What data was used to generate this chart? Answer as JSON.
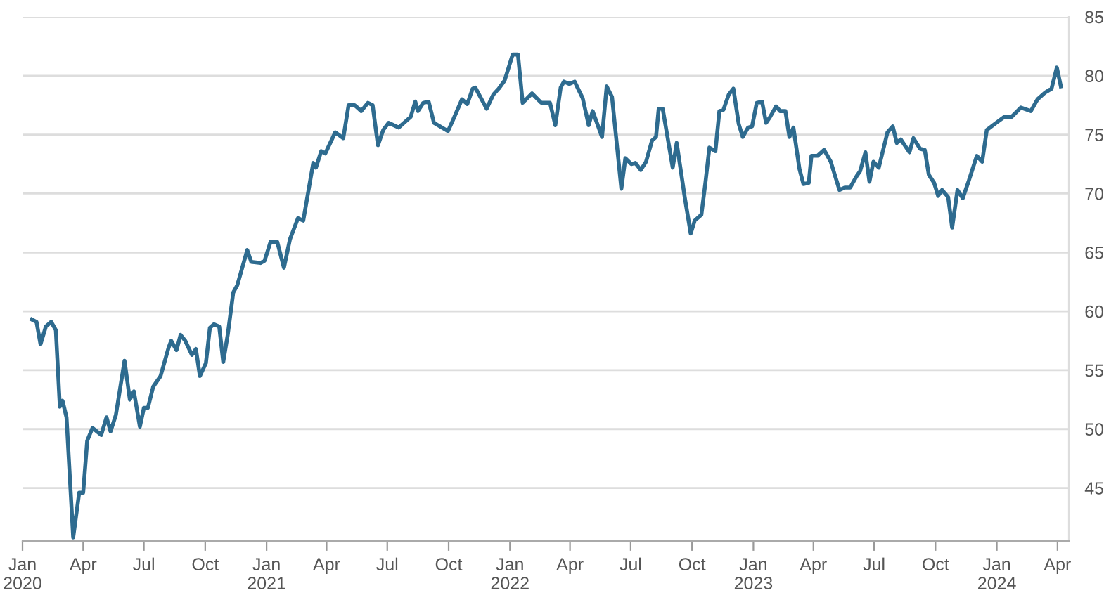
{
  "chart_data": {
    "type": "line",
    "grid": "y",
    "legend": false,
    "marker": "none",
    "line_style": "solid",
    "xlim": [
      "2020-01-01",
      "2024-04-18"
    ],
    "ylim": [
      40.5,
      85
    ],
    "yticks": [
      45,
      50,
      55,
      60,
      65,
      70,
      75,
      80,
      85
    ],
    "xticks": [
      {
        "value": "2020-01-01",
        "label": "Jan\n2020"
      },
      {
        "value": "2020-04-01",
        "label": "Apr"
      },
      {
        "value": "2020-07-01",
        "label": "Jul"
      },
      {
        "value": "2020-10-01",
        "label": "Oct"
      },
      {
        "value": "2021-01-01",
        "label": "Jan\n2021"
      },
      {
        "value": "2021-04-01",
        "label": "Apr"
      },
      {
        "value": "2021-07-01",
        "label": "Jul"
      },
      {
        "value": "2021-10-01",
        "label": "Oct"
      },
      {
        "value": "2022-01-01",
        "label": "Jan\n2022"
      },
      {
        "value": "2022-04-01",
        "label": "Apr"
      },
      {
        "value": "2022-07-01",
        "label": "Jul"
      },
      {
        "value": "2022-10-01",
        "label": "Oct"
      },
      {
        "value": "2023-01-01",
        "label": "Jan\n2023"
      },
      {
        "value": "2023-04-01",
        "label": "Apr"
      },
      {
        "value": "2023-07-01",
        "label": "Jul"
      },
      {
        "value": "2023-10-01",
        "label": "Oct"
      },
      {
        "value": "2024-01-01",
        "label": "Jan\n2024"
      },
      {
        "value": "2024-04-01",
        "label": "Apr"
      }
    ],
    "x": [
      "2020-01-15",
      "2020-01-22",
      "2020-01-28",
      "2020-02-05",
      "2020-02-13",
      "2020-02-20",
      "2020-02-26",
      "2020-03-01",
      "2020-03-07",
      "2020-03-17",
      "2020-03-26",
      "2020-04-01",
      "2020-04-07",
      "2020-04-15",
      "2020-04-28",
      "2020-05-06",
      "2020-05-12",
      "2020-05-20",
      "2020-06-02",
      "2020-06-10",
      "2020-06-16",
      "2020-06-25",
      "2020-07-01",
      "2020-07-07",
      "2020-07-15",
      "2020-07-26",
      "2020-08-07",
      "2020-08-11",
      "2020-08-19",
      "2020-08-25",
      "2020-09-01",
      "2020-09-11",
      "2020-09-17",
      "2020-09-23",
      "2020-10-02",
      "2020-10-08",
      "2020-10-14",
      "2020-10-22",
      "2020-10-28",
      "2020-11-04",
      "2020-11-12",
      "2020-11-18",
      "2020-12-03",
      "2020-12-09",
      "2020-12-23",
      "2020-12-29",
      "2021-01-07",
      "2021-01-17",
      "2021-01-27",
      "2021-02-05",
      "2021-02-17",
      "2021-02-25",
      "2021-03-12",
      "2021-03-16",
      "2021-03-24",
      "2021-03-30",
      "2021-04-14",
      "2021-04-26",
      "2021-05-04",
      "2021-05-13",
      "2021-05-23",
      "2021-06-02",
      "2021-06-09",
      "2021-06-17",
      "2021-06-25",
      "2021-07-03",
      "2021-07-18",
      "2021-07-30",
      "2021-08-05",
      "2021-08-12",
      "2021-08-16",
      "2021-08-24",
      "2021-09-01",
      "2021-09-09",
      "2021-09-18",
      "2021-09-30",
      "2021-10-08",
      "2021-10-21",
      "2021-10-29",
      "2021-11-06",
      "2021-11-10",
      "2021-11-27",
      "2021-12-07",
      "2021-12-15",
      "2021-12-24",
      "2022-01-05",
      "2022-01-13",
      "2022-01-20",
      "2022-02-03",
      "2022-02-17",
      "2022-03-02",
      "2022-03-10",
      "2022-03-18",
      "2022-03-23",
      "2022-03-31",
      "2022-04-08",
      "2022-04-20",
      "2022-04-29",
      "2022-05-05",
      "2022-05-19",
      "2022-05-26",
      "2022-06-03",
      "2022-06-17",
      "2022-06-23",
      "2022-07-02",
      "2022-07-08",
      "2022-07-16",
      "2022-07-24",
      "2022-08-02",
      "2022-08-08",
      "2022-08-12",
      "2022-08-18",
      "2022-09-02",
      "2022-09-08",
      "2022-09-20",
      "2022-09-29",
      "2022-10-05",
      "2022-10-15",
      "2022-10-21",
      "2022-10-27",
      "2022-11-05",
      "2022-11-11",
      "2022-11-17",
      "2022-11-25",
      "2022-12-02",
      "2022-12-10",
      "2022-12-16",
      "2022-12-24",
      "2022-12-30",
      "2023-01-06",
      "2023-01-14",
      "2023-01-20",
      "2023-01-26",
      "2023-02-04",
      "2023-02-10",
      "2023-02-18",
      "2023-02-24",
      "2023-03-02",
      "2023-03-11",
      "2023-03-17",
      "2023-03-25",
      "2023-03-29",
      "2023-04-07",
      "2023-04-17",
      "2023-04-27",
      "2023-05-10",
      "2023-05-18",
      "2023-05-26",
      "2023-06-05",
      "2023-06-10",
      "2023-06-18",
      "2023-06-24",
      "2023-06-30",
      "2023-07-08",
      "2023-07-21",
      "2023-07-29",
      "2023-08-04",
      "2023-08-10",
      "2023-08-23",
      "2023-08-29",
      "2023-09-08",
      "2023-09-15",
      "2023-09-21",
      "2023-09-29",
      "2023-10-05",
      "2023-10-11",
      "2023-10-20",
      "2023-10-26",
      "2023-11-03",
      "2023-11-11",
      "2023-11-20",
      "2023-12-02",
      "2023-12-10",
      "2023-12-17",
      "2023-12-31",
      "2024-01-12",
      "2024-01-23",
      "2024-02-06",
      "2024-02-21",
      "2024-03-02",
      "2024-03-14",
      "2024-03-23",
      "2024-03-31",
      "2024-04-06"
    ],
    "series": [
      {
        "color": "#2e6b8f",
        "values": [
          59.3,
          59.1,
          57.2,
          58.7,
          59.1,
          58.4,
          51.9,
          52.4,
          51.0,
          40.8,
          44.6,
          44.6,
          49.0,
          50.1,
          49.5,
          51.0,
          49.8,
          51.2,
          55.8,
          52.5,
          53.2,
          50.2,
          51.8,
          51.8,
          53.6,
          54.5,
          56.9,
          57.5,
          56.7,
          58.0,
          57.5,
          56.3,
          56.8,
          54.5,
          55.6,
          58.6,
          58.9,
          58.7,
          55.7,
          58.1,
          61.6,
          62.2,
          65.2,
          64.2,
          64.1,
          64.3,
          65.9,
          65.9,
          63.7,
          66.1,
          67.9,
          67.7,
          72.6,
          72.2,
          73.6,
          73.4,
          75.2,
          74.7,
          77.5,
          77.5,
          77.0,
          77.7,
          77.5,
          74.1,
          75.4,
          76.0,
          75.6,
          76.2,
          76.5,
          77.8,
          77.0,
          77.7,
          77.8,
          76.0,
          75.7,
          75.3,
          76.3,
          78.0,
          77.6,
          78.9,
          79.0,
          77.2,
          78.4,
          78.9,
          79.6,
          81.8,
          81.8,
          77.7,
          78.5,
          77.7,
          77.7,
          75.8,
          79.0,
          79.5,
          79.3,
          79.5,
          78.1,
          75.8,
          77.0,
          74.8,
          79.1,
          78.2,
          70.4,
          73.0,
          72.5,
          72.6,
          72.0,
          72.7,
          74.5,
          74.8,
          77.2,
          77.2,
          72.2,
          74.3,
          69.7,
          66.6,
          67.7,
          68.2,
          70.9,
          73.9,
          73.6,
          77.0,
          77.1,
          78.4,
          78.9,
          75.9,
          74.8,
          75.6,
          75.7,
          77.7,
          77.8,
          76.0,
          76.5,
          77.4,
          77.0,
          77.0,
          74.8,
          75.6,
          72.1,
          70.8,
          70.9,
          73.2,
          73.2,
          73.7,
          72.7,
          70.3,
          70.5,
          70.5,
          71.5,
          71.9,
          73.5,
          71.0,
          72.7,
          72.2,
          75.2,
          75.7,
          74.3,
          74.6,
          73.5,
          74.7,
          73.8,
          73.7,
          71.6,
          70.9,
          69.8,
          70.3,
          69.7,
          67.1,
          70.3,
          69.6,
          71.1,
          73.2,
          72.7,
          75.4,
          76.0,
          76.5,
          76.5,
          77.3,
          77.0,
          78.0,
          78.6,
          78.9,
          80.7,
          79.1
        ]
      }
    ]
  }
}
